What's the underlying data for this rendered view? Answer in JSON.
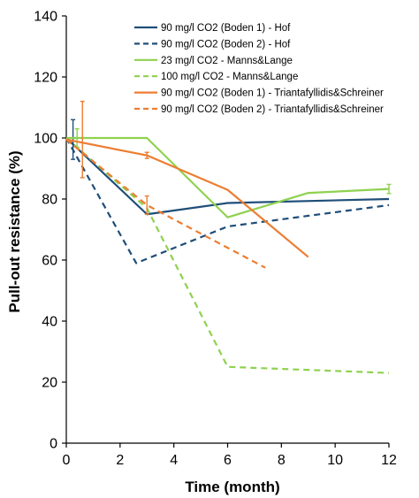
{
  "chart_data": {
    "type": "line",
    "xlabel": "Time (month)",
    "ylabel": "Pull-out resistance (%)",
    "xlim": [
      0,
      12
    ],
    "ylim": [
      0,
      140
    ],
    "xticks": [
      "0",
      "2",
      "4",
      "6",
      "8",
      "10",
      "12"
    ],
    "yticks": [
      "0",
      "20",
      "40",
      "60",
      "80",
      "100",
      "120",
      "140"
    ],
    "grid": false,
    "legend_position": "top-right",
    "series": [
      {
        "name": "90 mg/l CO2 (Boden 1) - Hof",
        "color": "#1f4e79",
        "dash": "solid",
        "points": [
          [
            0,
            100
          ],
          [
            3,
            75
          ],
          [
            6,
            78.7
          ],
          [
            12,
            80
          ]
        ],
        "error_bars": [
          [
            0.25,
            99.5,
            6.5
          ]
        ]
      },
      {
        "name": "90 mg/l CO2 (Boden 2) - Hof",
        "color": "#1f4e79",
        "dash": "dashed",
        "points": [
          [
            0,
            100
          ],
          [
            2.6,
            59
          ],
          [
            6,
            71
          ],
          [
            12,
            78
          ]
        ],
        "error_bars": []
      },
      {
        "name": "23 mg/l CO2 - Manns&Lange",
        "color": "#8fd14f",
        "dash": "solid",
        "points": [
          [
            0,
            100
          ],
          [
            3,
            100
          ],
          [
            6,
            74
          ],
          [
            9,
            82
          ],
          [
            12,
            83.3
          ]
        ],
        "error_bars": [
          [
            0.4,
            100,
            3
          ],
          [
            12,
            83.3,
            1.5
          ]
        ]
      },
      {
        "name": "100 mg/l CO2 - Manns&Lange",
        "color": "#8fd14f",
        "dash": "dashed",
        "points": [
          [
            0,
            100
          ],
          [
            3,
            77
          ],
          [
            6,
            25
          ],
          [
            12,
            23
          ]
        ],
        "error_bars": []
      },
      {
        "name": "90 mg/l CO2 (Boden 1) - Triantafyllidis&Schreiner",
        "color": "#ed7d31",
        "dash": "solid",
        "points": [
          [
            0,
            99.5
          ],
          [
            3,
            94.3
          ],
          [
            6,
            83
          ],
          [
            9,
            61
          ]
        ],
        "error_bars": [
          [
            0.6,
            99.5,
            12.5
          ],
          [
            3,
            94.3,
            1
          ]
        ]
      },
      {
        "name": "90 mg/l CO2 (Boden 2) - Triantafyllidis&Schreiner",
        "color": "#ed7d31",
        "dash": "dashed",
        "points": [
          [
            0,
            99.5
          ],
          [
            3,
            78
          ],
          [
            7.4,
            57.5
          ]
        ],
        "error_bars": [
          [
            3,
            78,
            3
          ]
        ]
      }
    ]
  }
}
